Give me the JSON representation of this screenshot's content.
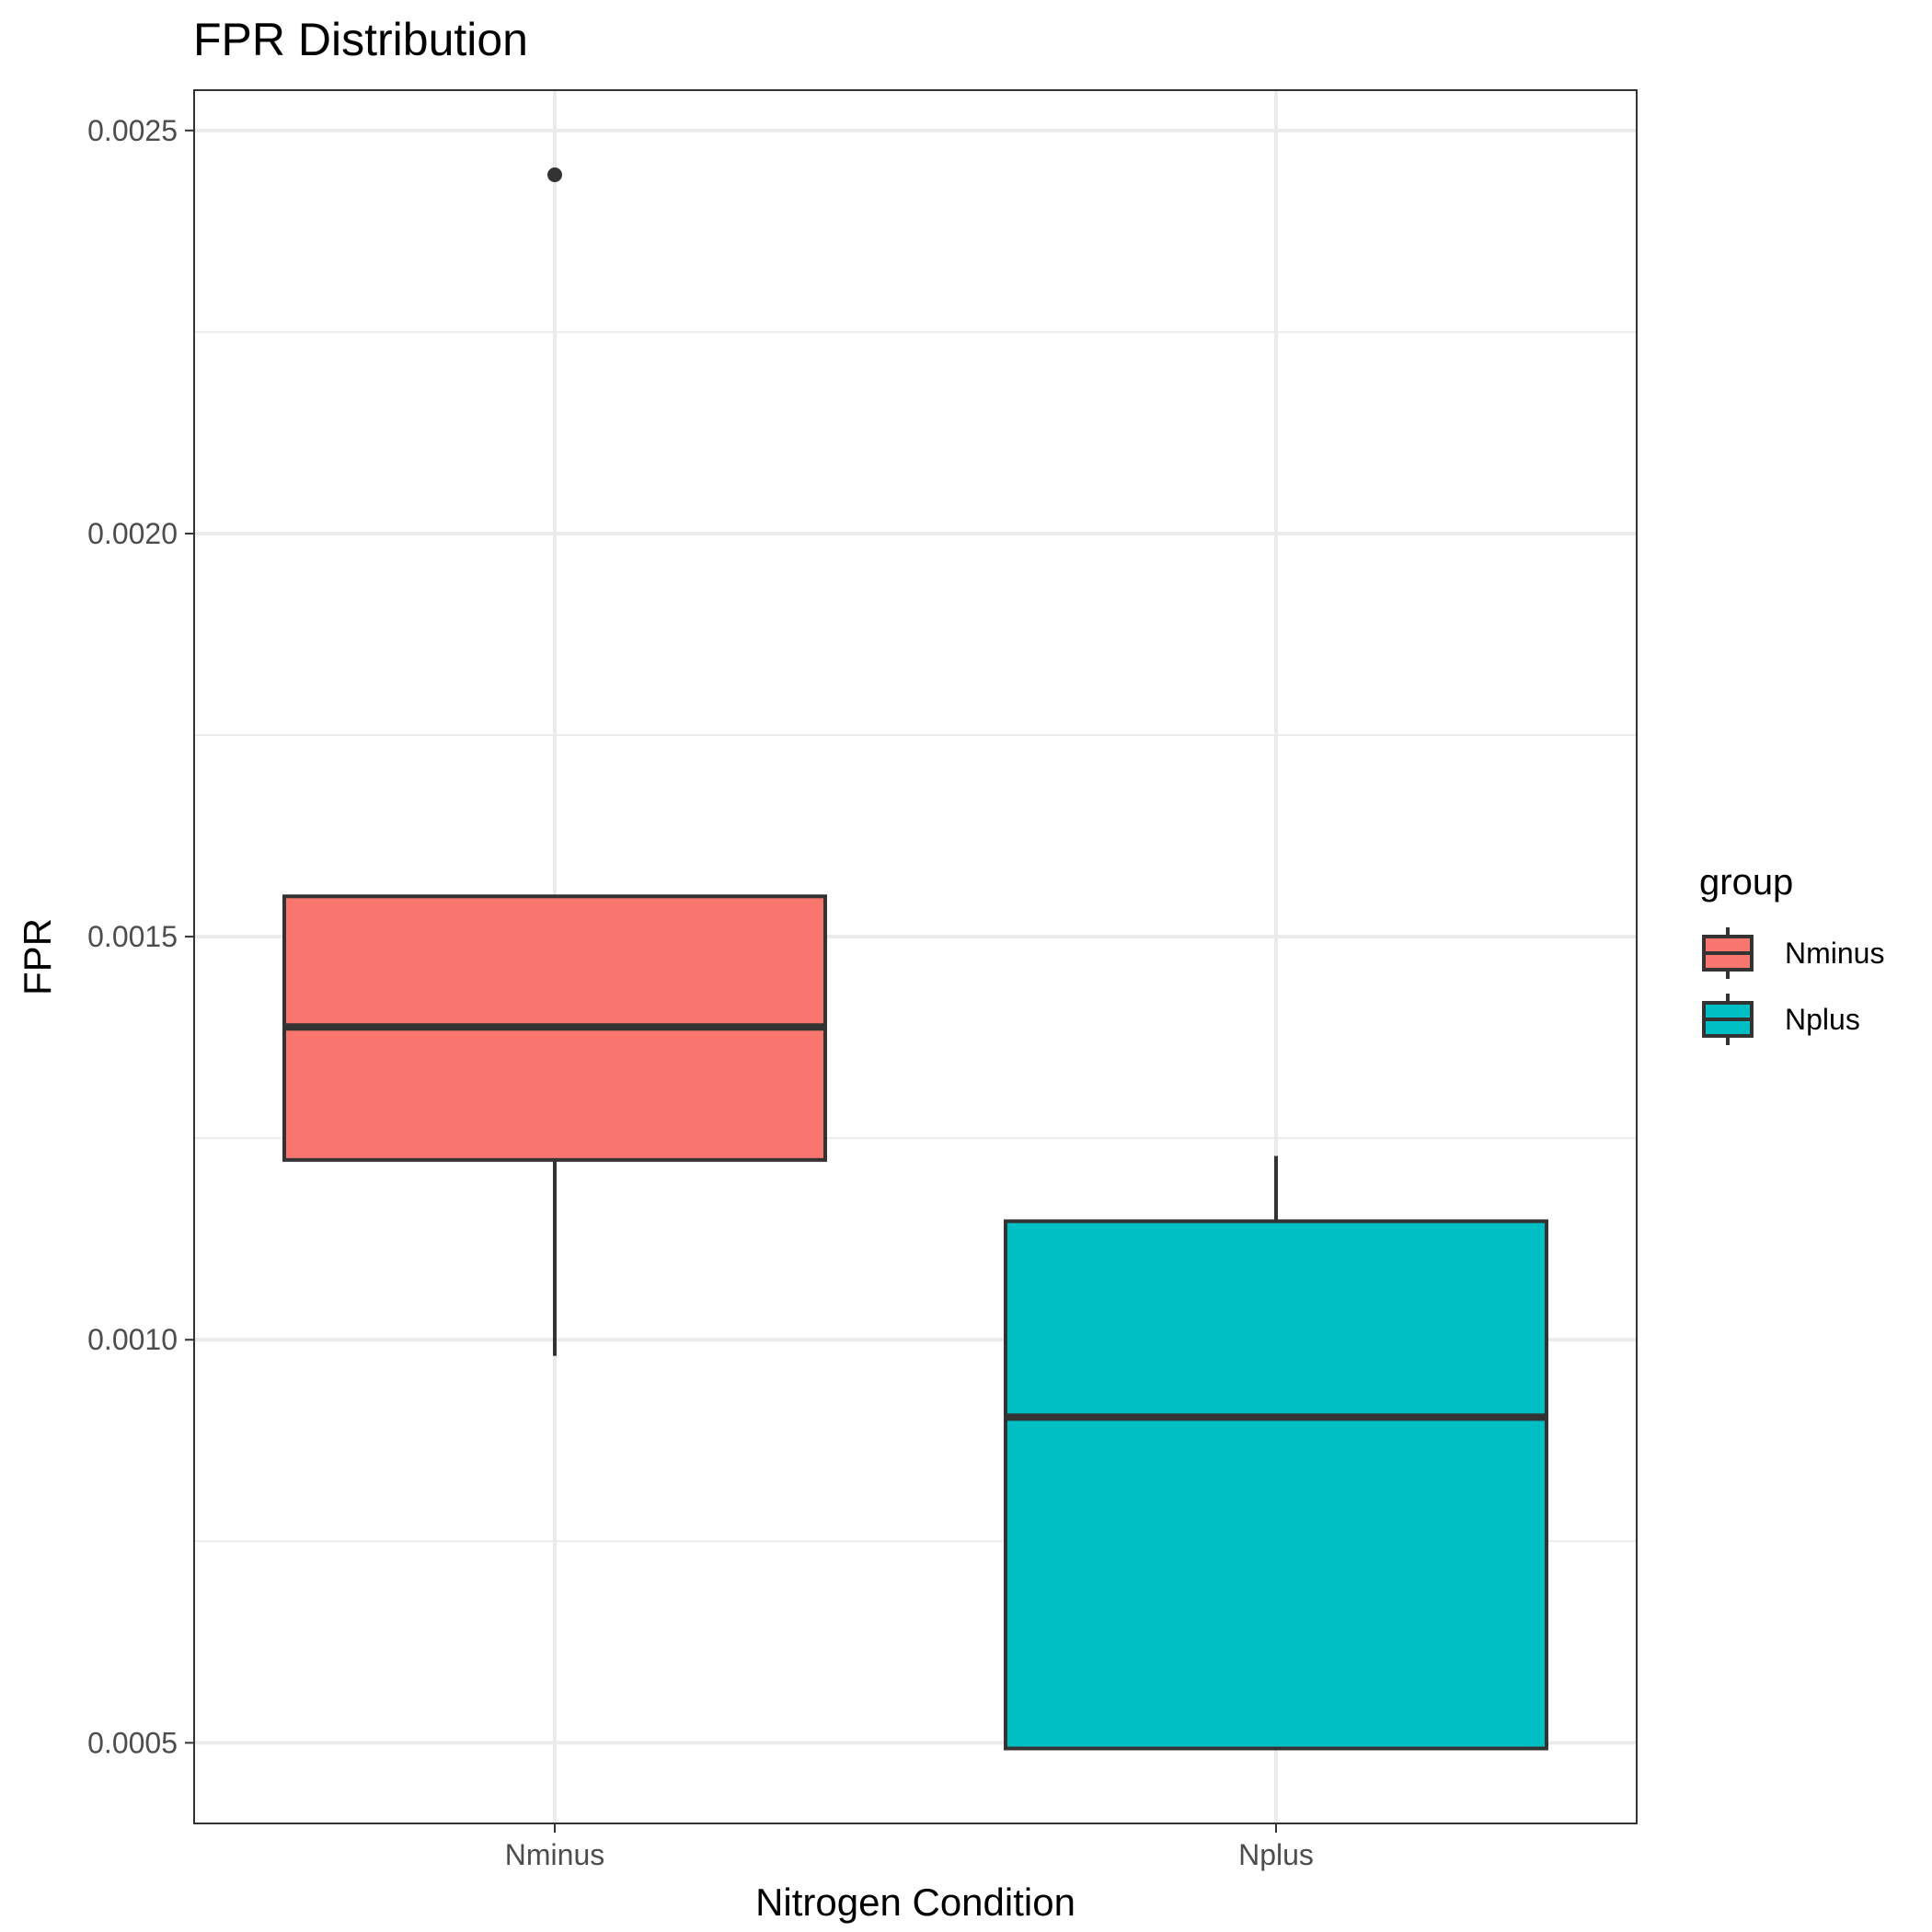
{
  "chart_data": {
    "type": "boxplot",
    "title": "FPR Distribution",
    "xlabel": "Nitrogen Condition",
    "ylabel": "FPR",
    "categories": [
      "Nminus",
      "Nplus"
    ],
    "ylim": [
      0.0004,
      0.00255
    ],
    "yticks": [
      "0.0005",
      "0.0010",
      "0.0015",
      "0.0020",
      "0.0025"
    ],
    "ytick_values": [
      0.0005,
      0.001,
      0.0015,
      0.002,
      0.0025
    ],
    "yminor_values": [
      0.00075,
      0.00125,
      0.00175,
      0.00225
    ],
    "grid": true,
    "legend": {
      "title": "group",
      "position": "right",
      "entries": [
        "Nminus",
        "Nplus"
      ]
    },
    "boxes": [
      {
        "name": "Nminus",
        "color": "#F8766D",
        "whisker_low": 0.00098,
        "q1": 0.001223,
        "median": 0.001388,
        "q3": 0.00155,
        "whisker_high": 0.00155,
        "outliers": [
          0.002445
        ]
      },
      {
        "name": "Nplus",
        "color": "#00BFC4",
        "whisker_low": 0.000493,
        "q1": 0.000493,
        "median": 0.000904,
        "q3": 0.001147,
        "whisker_high": 0.001228,
        "outliers": []
      }
    ]
  }
}
